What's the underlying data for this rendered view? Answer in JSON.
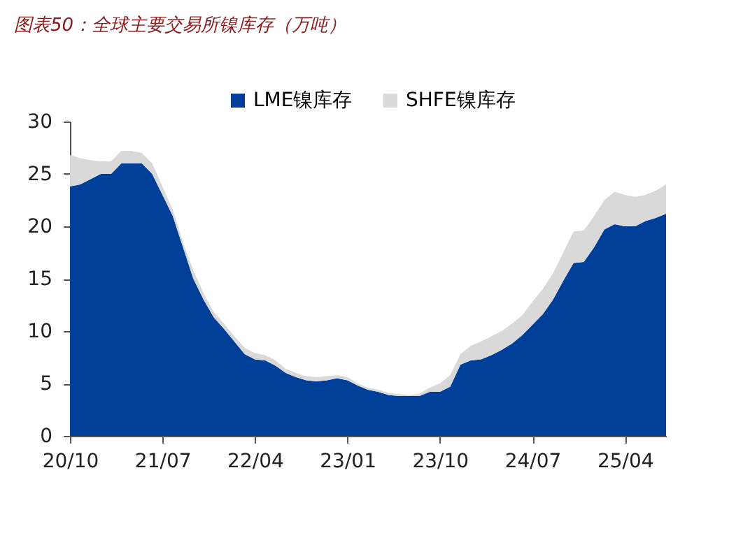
{
  "chart_data": {
    "type": "area",
    "title": "图表50：全球主要交易所镍库存（万吨）",
    "stacked": true,
    "legend": "top right",
    "grid": false,
    "categories": [
      "20/10",
      null,
      null,
      null,
      null,
      null,
      null,
      null,
      null,
      "21/07",
      null,
      null,
      null,
      null,
      null,
      null,
      null,
      null,
      "22/04",
      null,
      null,
      null,
      null,
      null,
      null,
      null,
      null,
      "23/01",
      null,
      null,
      null,
      null,
      null,
      null,
      null,
      null,
      "23/10",
      null,
      null,
      null,
      null,
      null,
      null,
      null,
      null,
      "24/07",
      null,
      null,
      null,
      null,
      null,
      null,
      null,
      null,
      "25/04",
      null,
      null,
      null,
      null
    ],
    "series": [
      {
        "name": "LME镍库存",
        "color": "#003f98",
        "values": [
          23.8,
          24.0,
          24.5,
          25.0,
          25.0,
          26.0,
          26.0,
          26.0,
          25.0,
          23.0,
          21.0,
          18.0,
          15.0,
          13.0,
          11.3,
          10.2,
          9.0,
          7.8,
          7.3,
          7.2,
          6.7,
          6.0,
          5.6,
          5.3,
          5.2,
          5.3,
          5.5,
          5.3,
          4.8,
          4.4,
          4.2,
          3.9,
          3.8,
          3.8,
          3.8,
          4.2,
          4.2,
          4.7,
          6.8,
          7.2,
          7.3,
          7.7,
          8.2,
          8.8,
          9.6,
          10.6,
          11.6,
          13.0,
          14.8,
          16.5,
          16.6,
          18.0,
          19.7,
          20.2,
          20.0,
          20.0,
          20.5,
          20.8,
          21.2
        ]
      },
      {
        "name": "SHFE镍库存",
        "color": "#d9d9d9",
        "values": [
          3.0,
          2.5,
          1.8,
          1.2,
          1.2,
          1.2,
          1.2,
          1.0,
          1.0,
          0.8,
          0.6,
          0.5,
          0.8,
          0.6,
          0.5,
          0.5,
          0.5,
          0.6,
          0.6,
          0.5,
          0.5,
          0.4,
          0.4,
          0.4,
          0.4,
          0.4,
          0.3,
          0.3,
          0.2,
          0.2,
          0.2,
          0.2,
          0.2,
          0.1,
          0.2,
          0.4,
          0.8,
          1.1,
          1.0,
          1.4,
          1.7,
          1.8,
          1.8,
          1.9,
          1.9,
          2.2,
          2.4,
          2.5,
          2.7,
          3.0,
          3.0,
          3.0,
          2.8,
          3.1,
          3.0,
          2.8,
          2.5,
          2.6,
          2.8
        ]
      }
    ],
    "ylim": [
      0,
      30
    ],
    "yticks": [
      0,
      5,
      10,
      15,
      20,
      25,
      30
    ]
  }
}
